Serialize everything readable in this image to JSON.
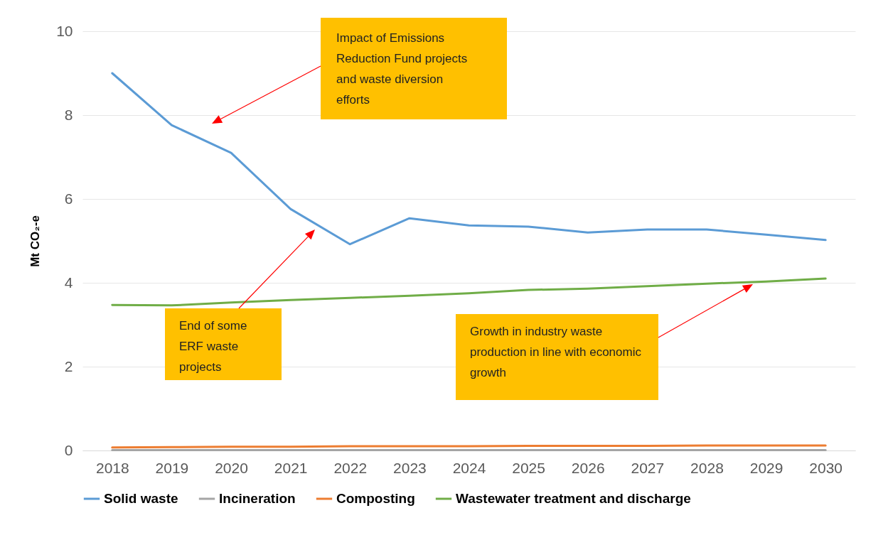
{
  "chart_data": {
    "type": "line",
    "ylabel": "Mt CO₂-e",
    "categories": [
      "2018",
      "2019",
      "2020",
      "2021",
      "2022",
      "2023",
      "2024",
      "2025",
      "2026",
      "2027",
      "2028",
      "2029",
      "2030"
    ],
    "series": [
      {
        "name": "Solid waste",
        "color": "#5b9bd5",
        "values": [
          9.0,
          7.76,
          7.1,
          5.76,
          4.92,
          5.54,
          5.37,
          5.34,
          5.2,
          5.27,
          5.27,
          5.15,
          5.02
        ]
      },
      {
        "name": "Incineration",
        "color": "#a5a5a5",
        "values": [
          0.01,
          0.01,
          0.01,
          0.01,
          0.01,
          0.01,
          0.01,
          0.01,
          0.01,
          0.01,
          0.01,
          0.01,
          0.01
        ]
      },
      {
        "name": "Composting",
        "color": "#ed7d31",
        "values": [
          0.07,
          0.08,
          0.09,
          0.09,
          0.1,
          0.1,
          0.1,
          0.11,
          0.11,
          0.11,
          0.12,
          0.12,
          0.12
        ]
      },
      {
        "name": "Wastewater treatment and discharge",
        "color": "#70ad47",
        "values": [
          3.47,
          3.46,
          3.53,
          3.59,
          3.64,
          3.69,
          3.75,
          3.83,
          3.86,
          3.92,
          3.98,
          4.03,
          4.1
        ]
      }
    ],
    "ylim": [
      0,
      10
    ],
    "yticks": [
      0,
      2,
      4,
      6,
      8,
      10
    ],
    "grid": "y",
    "legend": "bottom",
    "annotations": [
      "Impact of Emissions Reduction Fund projects and waste diversion efforts",
      "End of some ERF waste projects",
      "Growth in industry waste production in line with economic growth"
    ]
  }
}
